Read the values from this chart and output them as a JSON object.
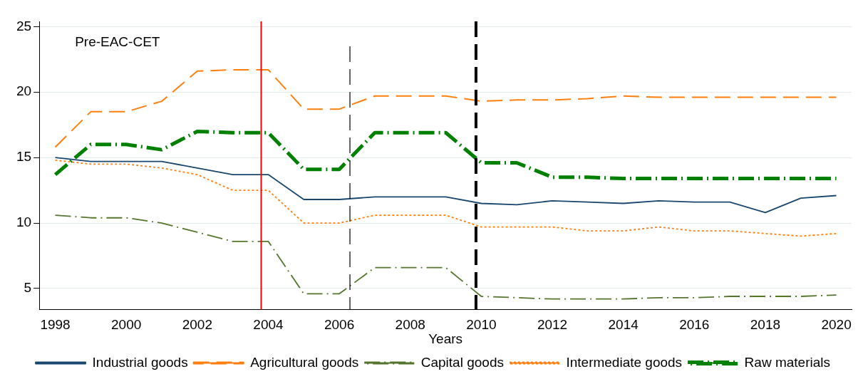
{
  "chart_data": {
    "type": "line",
    "xlabel": "Years",
    "x": [
      1998,
      1999,
      2000,
      2001,
      2002,
      2003,
      2004,
      2005,
      2006,
      2007,
      2008,
      2009,
      2010,
      2011,
      2012,
      2013,
      2014,
      2015,
      2016,
      2017,
      2018,
      2019,
      2020
    ],
    "xlim": [
      1997.55,
      2020.43
    ],
    "xticks": [
      1998,
      2000,
      2002,
      2004,
      2006,
      2008,
      2010,
      2012,
      2014,
      2016,
      2018,
      2020
    ],
    "ylim": [
      3.4,
      25.4
    ],
    "yticks": [
      5,
      10,
      15,
      20,
      25
    ],
    "grid": "y",
    "legend": "bottom",
    "marker": "none",
    "series": [
      {
        "name": "Industrial goods",
        "color": "#1a476f",
        "line_style": "solid",
        "values": [
          15.0,
          14.7,
          14.7,
          14.7,
          14.2,
          13.7,
          13.7,
          11.8,
          11.8,
          12.0,
          12.0,
          12.0,
          11.5,
          11.4,
          11.7,
          11.6,
          11.5,
          11.7,
          11.6,
          11.6,
          10.8,
          11.9,
          12.1
        ]
      },
      {
        "name": "Agricultural goods",
        "color": "#ff7f0e",
        "line_style": "dashed",
        "values": [
          15.8,
          18.5,
          18.5,
          19.3,
          21.6,
          21.7,
          21.7,
          18.7,
          18.7,
          19.7,
          19.7,
          19.7,
          19.3,
          19.4,
          19.4,
          19.5,
          19.7,
          19.6,
          19.6,
          19.6,
          19.6,
          19.6,
          19.6
        ]
      },
      {
        "name": "Capital goods",
        "color": "#55752f",
        "line_style": "dashdot",
        "values": [
          10.6,
          10.4,
          10.4,
          10.0,
          9.3,
          8.6,
          8.6,
          4.6,
          4.6,
          6.6,
          6.6,
          6.6,
          4.4,
          4.3,
          4.2,
          4.2,
          4.2,
          4.3,
          4.3,
          4.4,
          4.4,
          4.4,
          4.5
        ]
      },
      {
        "name": "Intermediate goods",
        "color": "#ff7f0e",
        "line_style": "dotted",
        "values": [
          14.8,
          14.5,
          14.5,
          14.2,
          13.7,
          12.5,
          12.5,
          10.0,
          10.0,
          10.6,
          10.6,
          10.6,
          9.7,
          9.7,
          9.7,
          9.4,
          9.4,
          9.7,
          9.4,
          9.4,
          9.2,
          9.0,
          9.2
        ]
      },
      {
        "name": "Raw materials",
        "color": "#008000",
        "line_style": "dashdot",
        "values": [
          13.7,
          16.0,
          16.0,
          15.6,
          17.0,
          16.9,
          16.9,
          14.1,
          14.1,
          16.9,
          16.9,
          16.9,
          14.6,
          14.6,
          13.5,
          13.5,
          13.4,
          13.4,
          13.4,
          13.4,
          13.4,
          13.4,
          13.4
        ]
      }
    ],
    "ref_lines": [
      {
        "axis": "x",
        "value": 2003.8,
        "color": "#ff0000",
        "line_style": "solid"
      },
      {
        "axis": "x",
        "value": 2006.3,
        "color": "#000000",
        "line_style": "dashed"
      },
      {
        "axis": "x",
        "value": 2009.85,
        "color": "#000000",
        "line_style": "dashed"
      }
    ],
    "annotations": [
      "Pre-EAC-CET"
    ]
  }
}
